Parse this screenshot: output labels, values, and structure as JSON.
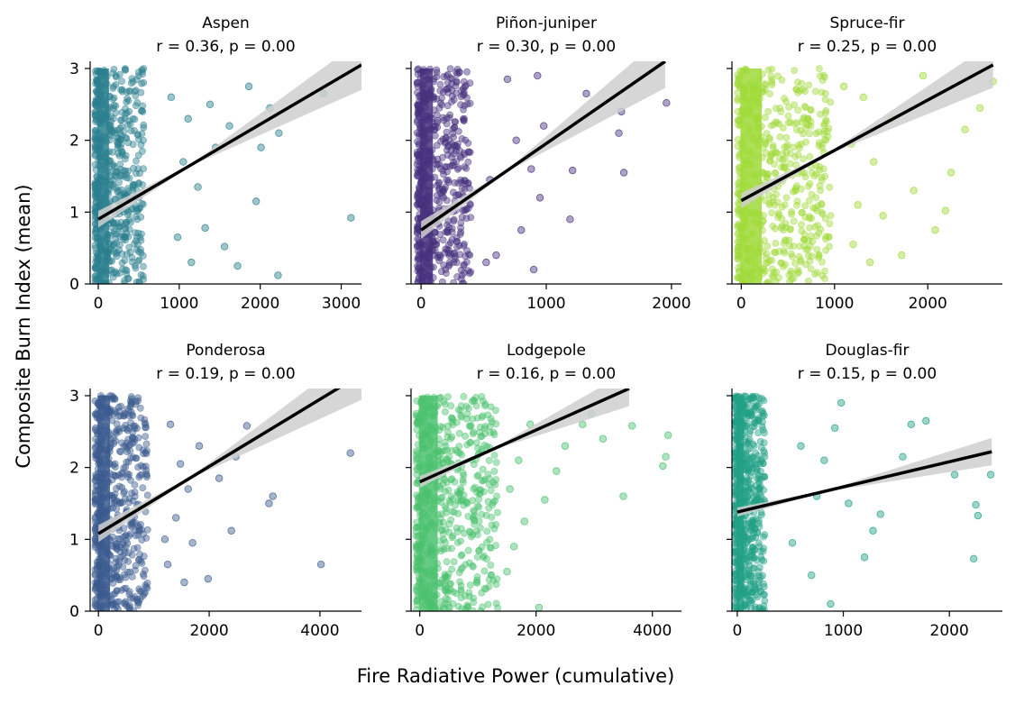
{
  "figure": {
    "xlabel": "Fire Radiative Power (cumulative)",
    "ylabel": "Composite Burn Index (mean)",
    "regression_color": "#000000",
    "ci_color": "#cfcfcf"
  },
  "chart_data": [
    {
      "type": "scatter",
      "title": "Aspen",
      "stats": "r = 0.36, p = 0.00",
      "color": "#2a7f8e",
      "xlim": [
        -100,
        3250
      ],
      "ylim": [
        0,
        3.1
      ],
      "xticks": [
        0,
        1000,
        2000,
        3000
      ],
      "yticks": [
        0,
        1,
        2,
        3
      ],
      "dense_xmax": 600,
      "fit": {
        "x0": 0,
        "y0": 0.9,
        "x1": 3250,
        "y1": 3.05
      },
      "points": [
        [
          2780,
          2.65
        ],
        [
          3120,
          0.92
        ],
        [
          2230,
          2.1
        ],
        [
          2220,
          0.12
        ],
        [
          2120,
          2.45
        ],
        [
          1720,
          0.25
        ],
        [
          1860,
          2.75
        ],
        [
          2010,
          1.9
        ],
        [
          1950,
          1.15
        ],
        [
          1560,
          0.52
        ],
        [
          1450,
          1.9
        ],
        [
          1320,
          0.78
        ],
        [
          1230,
          1.35
        ],
        [
          1110,
          2.3
        ],
        [
          980,
          0.65
        ],
        [
          1050,
          1.7
        ],
        [
          1620,
          2.2
        ],
        [
          1380,
          2.5
        ],
        [
          1150,
          0.3
        ],
        [
          900,
          2.6
        ]
      ],
      "xlabel": "",
      "ylabel": ""
    },
    {
      "type": "scatter",
      "title": "Piñon-juniper",
      "stats": "r = 0.30, p = 0.00",
      "color": "#46317e",
      "xlim": [
        -80,
        2080
      ],
      "ylim": [
        0,
        3.1
      ],
      "xticks": [
        0,
        1000,
        2000
      ],
      "yticks": [
        0,
        1,
        2,
        3
      ],
      "dense_xmax": 430,
      "fit": {
        "x0": 0,
        "y0": 0.75,
        "x1": 1950,
        "y1": 3.1
      },
      "points": [
        [
          1960,
          2.52
        ],
        [
          1600,
          2.4
        ],
        [
          1620,
          1.55
        ],
        [
          1580,
          2.1
        ],
        [
          1320,
          2.65
        ],
        [
          1210,
          1.58
        ],
        [
          1190,
          0.9
        ],
        [
          950,
          1.2
        ],
        [
          930,
          2.9
        ],
        [
          900,
          0.2
        ],
        [
          800,
          0.75
        ],
        [
          760,
          2.0
        ],
        [
          690,
          2.85
        ],
        [
          600,
          0.4
        ],
        [
          520,
          0.3
        ],
        [
          550,
          1.45
        ],
        [
          980,
          2.2
        ],
        [
          880,
          1.6
        ]
      ],
      "xlabel": "",
      "ylabel": ""
    },
    {
      "type": "scatter",
      "title": "Spruce-fir",
      "stats": "r = 0.25, p = 0.00",
      "color": "#a0da39",
      "xlim": [
        -100,
        2800
      ],
      "ylim": [
        0,
        3.1
      ],
      "xticks": [
        0,
        1000,
        2000
      ],
      "yticks": [
        0,
        1,
        2,
        3
      ],
      "dense_xmax": 1000,
      "fit": {
        "x0": 0,
        "y0": 1.16,
        "x1": 2700,
        "y1": 3.05
      },
      "points": [
        [
          2700,
          2.82
        ],
        [
          2560,
          2.45
        ],
        [
          2400,
          2.15
        ],
        [
          2250,
          1.55
        ],
        [
          2190,
          1.02
        ],
        [
          2080,
          0.75
        ],
        [
          1950,
          2.9
        ],
        [
          1850,
          1.3
        ],
        [
          1720,
          0.4
        ],
        [
          1600,
          2.3
        ],
        [
          1520,
          0.95
        ],
        [
          1420,
          1.7
        ],
        [
          1380,
          0.3
        ],
        [
          1310,
          2.6
        ],
        [
          1250,
          1.1
        ],
        [
          1200,
          0.55
        ],
        [
          1180,
          1.95
        ],
        [
          1100,
          2.75
        ]
      ],
      "xlabel": "",
      "ylabel": ""
    },
    {
      "type": "scatter",
      "title": "Ponderosa",
      "stats": "r = 0.19, p = 0.00",
      "color": "#3b5b8f",
      "xlim": [
        -150,
        4750
      ],
      "ylim": [
        0,
        3.1
      ],
      "xticks": [
        0,
        2000,
        4000
      ],
      "yticks": [
        0,
        1,
        2,
        3
      ],
      "dense_xmax": 950,
      "fit": {
        "x0": 0,
        "y0": 1.08,
        "x1": 4750,
        "y1": 3.3
      },
      "points": [
        [
          4550,
          2.2
        ],
        [
          4020,
          0.65
        ],
        [
          3150,
          1.6
        ],
        [
          3080,
          1.5
        ],
        [
          2680,
          2.58
        ],
        [
          2480,
          2.15
        ],
        [
          2400,
          1.12
        ],
        [
          2180,
          1.85
        ],
        [
          1980,
          0.45
        ],
        [
          1820,
          2.3
        ],
        [
          1700,
          0.95
        ],
        [
          1620,
          1.7
        ],
        [
          1550,
          0.4
        ],
        [
          1480,
          2.05
        ],
        [
          1400,
          1.3
        ],
        [
          1300,
          2.6
        ],
        [
          1250,
          0.65
        ],
        [
          1200,
          1.0
        ]
      ],
      "xlabel": "",
      "ylabel": ""
    },
    {
      "type": "scatter",
      "title": "Lodgepole",
      "stats": "r = 0.16, p = 0.00",
      "color": "#4ac16d",
      "xlim": [
        -150,
        4500
      ],
      "ylim": [
        0,
        3.1
      ],
      "xticks": [
        0,
        2000,
        4000
      ],
      "yticks": [
        0,
        1,
        2,
        3
      ],
      "dense_xmax": 1400,
      "fit": {
        "x0": 0,
        "y0": 1.8,
        "x1": 3600,
        "y1": 3.1
      },
      "points": [
        [
          4270,
          2.45
        ],
        [
          4180,
          2.02
        ],
        [
          4230,
          2.15
        ],
        [
          3650,
          2.58
        ],
        [
          3500,
          1.6
        ],
        [
          3150,
          2.4
        ],
        [
          2950,
          2.75
        ],
        [
          2800,
          2.6
        ],
        [
          2500,
          2.3
        ],
        [
          2350,
          1.95
        ],
        [
          2150,
          1.55
        ],
        [
          2050,
          0.05
        ],
        [
          1900,
          2.6
        ],
        [
          1800,
          1.25
        ],
        [
          1700,
          2.1
        ],
        [
          1620,
          0.9
        ],
        [
          1550,
          1.7
        ],
        [
          1500,
          0.55
        ]
      ],
      "xlabel": "",
      "ylabel": ""
    },
    {
      "type": "scatter",
      "title": "Douglas-fir",
      "stats": "r = 0.15, p = 0.00",
      "color": "#21a086",
      "xlim": [
        -50,
        2500
      ],
      "ylim": [
        0,
        3.1
      ],
      "xticks": [
        0,
        1000,
        2000
      ],
      "yticks": [
        0,
        1,
        2,
        3
      ],
      "dense_xmax": 280,
      "fit": {
        "x0": 0,
        "y0": 1.38,
        "x1": 2400,
        "y1": 2.22
      },
      "points": [
        [
          2390,
          1.9
        ],
        [
          2250,
          1.48
        ],
        [
          2270,
          1.33
        ],
        [
          2230,
          0.73
        ],
        [
          2050,
          1.9
        ],
        [
          1780,
          2.65
        ],
        [
          1640,
          2.6
        ],
        [
          1560,
          2.15
        ],
        [
          1350,
          1.35
        ],
        [
          1280,
          1.12
        ],
        [
          1200,
          0.75
        ],
        [
          1050,
          1.5
        ],
        [
          980,
          2.9
        ],
        [
          920,
          2.55
        ],
        [
          880,
          0.1
        ],
        [
          820,
          2.1
        ],
        [
          750,
          1.6
        ],
        [
          700,
          0.5
        ],
        [
          600,
          2.3
        ],
        [
          520,
          0.95
        ]
      ],
      "xlabel": "",
      "ylabel": ""
    }
  ]
}
